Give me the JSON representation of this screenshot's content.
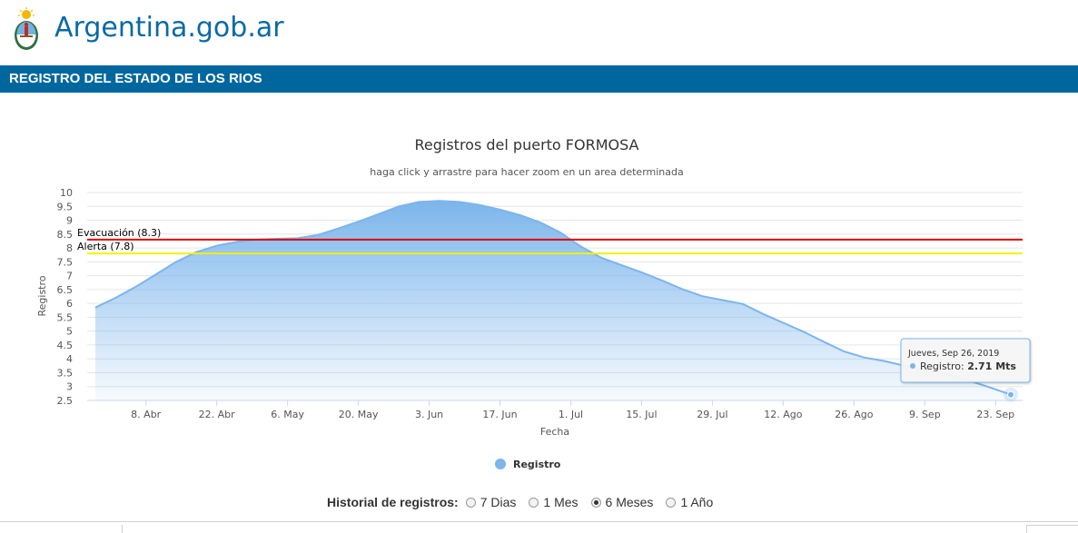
{
  "site": {
    "brand": "Argentina.gob.ar"
  },
  "section": {
    "title": "REGISTRO DEL ESTADO DE LOS RIOS"
  },
  "history": {
    "label": "Historial de registros:",
    "options": [
      {
        "label": "7 Dias",
        "checked": false
      },
      {
        "label": "1 Mes",
        "checked": false
      },
      {
        "label": "6 Meses",
        "checked": true
      },
      {
        "label": "1 Año",
        "checked": false
      }
    ]
  },
  "chart_data": {
    "type": "area",
    "title": "Registros del puerto FORMOSA",
    "subtitle": "haga click y arrastre para hacer zoom en un area determinada",
    "xlabel": "Fecha",
    "ylabel": "Registro",
    "ylim": [
      2.5,
      10
    ],
    "yticks": [
      "10",
      "9.5",
      "9",
      "8.5",
      "8",
      "7.5",
      "7",
      "6.5",
      "6",
      "5.5",
      "5",
      "4.5",
      "4",
      "3.5",
      "3",
      "2.5"
    ],
    "xrange": [
      "2019-03-29",
      "2019-09-26"
    ],
    "xticks": [
      {
        "date": "2019-04-08",
        "label": "8. Abr"
      },
      {
        "date": "2019-04-22",
        "label": "22. Abr"
      },
      {
        "date": "2019-05-06",
        "label": "6. May"
      },
      {
        "date": "2019-05-20",
        "label": "20. May"
      },
      {
        "date": "2019-06-03",
        "label": "3. Jun"
      },
      {
        "date": "2019-06-17",
        "label": "17. Jun"
      },
      {
        "date": "2019-07-01",
        "label": "1. Jul"
      },
      {
        "date": "2019-07-15",
        "label": "15. Jul"
      },
      {
        "date": "2019-07-29",
        "label": "29. Jul"
      },
      {
        "date": "2019-08-12",
        "label": "12. Ago"
      },
      {
        "date": "2019-08-26",
        "label": "26. Ago"
      },
      {
        "date": "2019-09-09",
        "label": "9. Sep"
      },
      {
        "date": "2019-09-23",
        "label": "23. Sep"
      }
    ],
    "grid": true,
    "legend_position": "bottom-center",
    "color": "#7cb5ec",
    "series": [
      {
        "name": "Registro",
        "points": [
          [
            "2019-03-29",
            5.85
          ],
          [
            "2019-04-02",
            6.2
          ],
          [
            "2019-04-06",
            6.6
          ],
          [
            "2019-04-10",
            7.05
          ],
          [
            "2019-04-14",
            7.5
          ],
          [
            "2019-04-18",
            7.85
          ],
          [
            "2019-04-22",
            8.08
          ],
          [
            "2019-04-26",
            8.22
          ],
          [
            "2019-04-30",
            8.3
          ],
          [
            "2019-05-04",
            8.33
          ],
          [
            "2019-05-08",
            8.35
          ],
          [
            "2019-05-12",
            8.47
          ],
          [
            "2019-05-16",
            8.7
          ],
          [
            "2019-05-20",
            8.95
          ],
          [
            "2019-05-24",
            9.22
          ],
          [
            "2019-05-28",
            9.5
          ],
          [
            "2019-06-01",
            9.66
          ],
          [
            "2019-06-05",
            9.7
          ],
          [
            "2019-06-09",
            9.66
          ],
          [
            "2019-06-13",
            9.55
          ],
          [
            "2019-06-17",
            9.38
          ],
          [
            "2019-06-21",
            9.18
          ],
          [
            "2019-06-25",
            8.92
          ],
          [
            "2019-06-29",
            8.55
          ],
          [
            "2019-07-03",
            8.05
          ],
          [
            "2019-07-07",
            7.65
          ],
          [
            "2019-07-11",
            7.38
          ],
          [
            "2019-07-15",
            7.12
          ],
          [
            "2019-07-19",
            6.83
          ],
          [
            "2019-07-23",
            6.52
          ],
          [
            "2019-07-27",
            6.26
          ],
          [
            "2019-07-31",
            6.12
          ],
          [
            "2019-08-04",
            5.98
          ],
          [
            "2019-08-08",
            5.62
          ],
          [
            "2019-08-12",
            5.3
          ],
          [
            "2019-08-16",
            4.98
          ],
          [
            "2019-08-20",
            4.62
          ],
          [
            "2019-08-24",
            4.27
          ],
          [
            "2019-08-28",
            4.05
          ],
          [
            "2019-09-01",
            3.92
          ],
          [
            "2019-09-05",
            3.75
          ],
          [
            "2019-09-09",
            3.6
          ],
          [
            "2019-09-13",
            3.46
          ],
          [
            "2019-09-17",
            3.25
          ],
          [
            "2019-09-21",
            3.02
          ],
          [
            "2019-09-26",
            2.71
          ]
        ]
      }
    ],
    "plot_lines": [
      {
        "label": "Evacuación (8.3)",
        "value": 8.3,
        "color": "#e00000"
      },
      {
        "label": "Alerta (7.8)",
        "value": 7.8,
        "color": "#f2f200"
      }
    ],
    "tooltip": {
      "date": "Jueves, Sep 26, 2019",
      "series": "Registro",
      "value": "2.71 Mts"
    }
  }
}
